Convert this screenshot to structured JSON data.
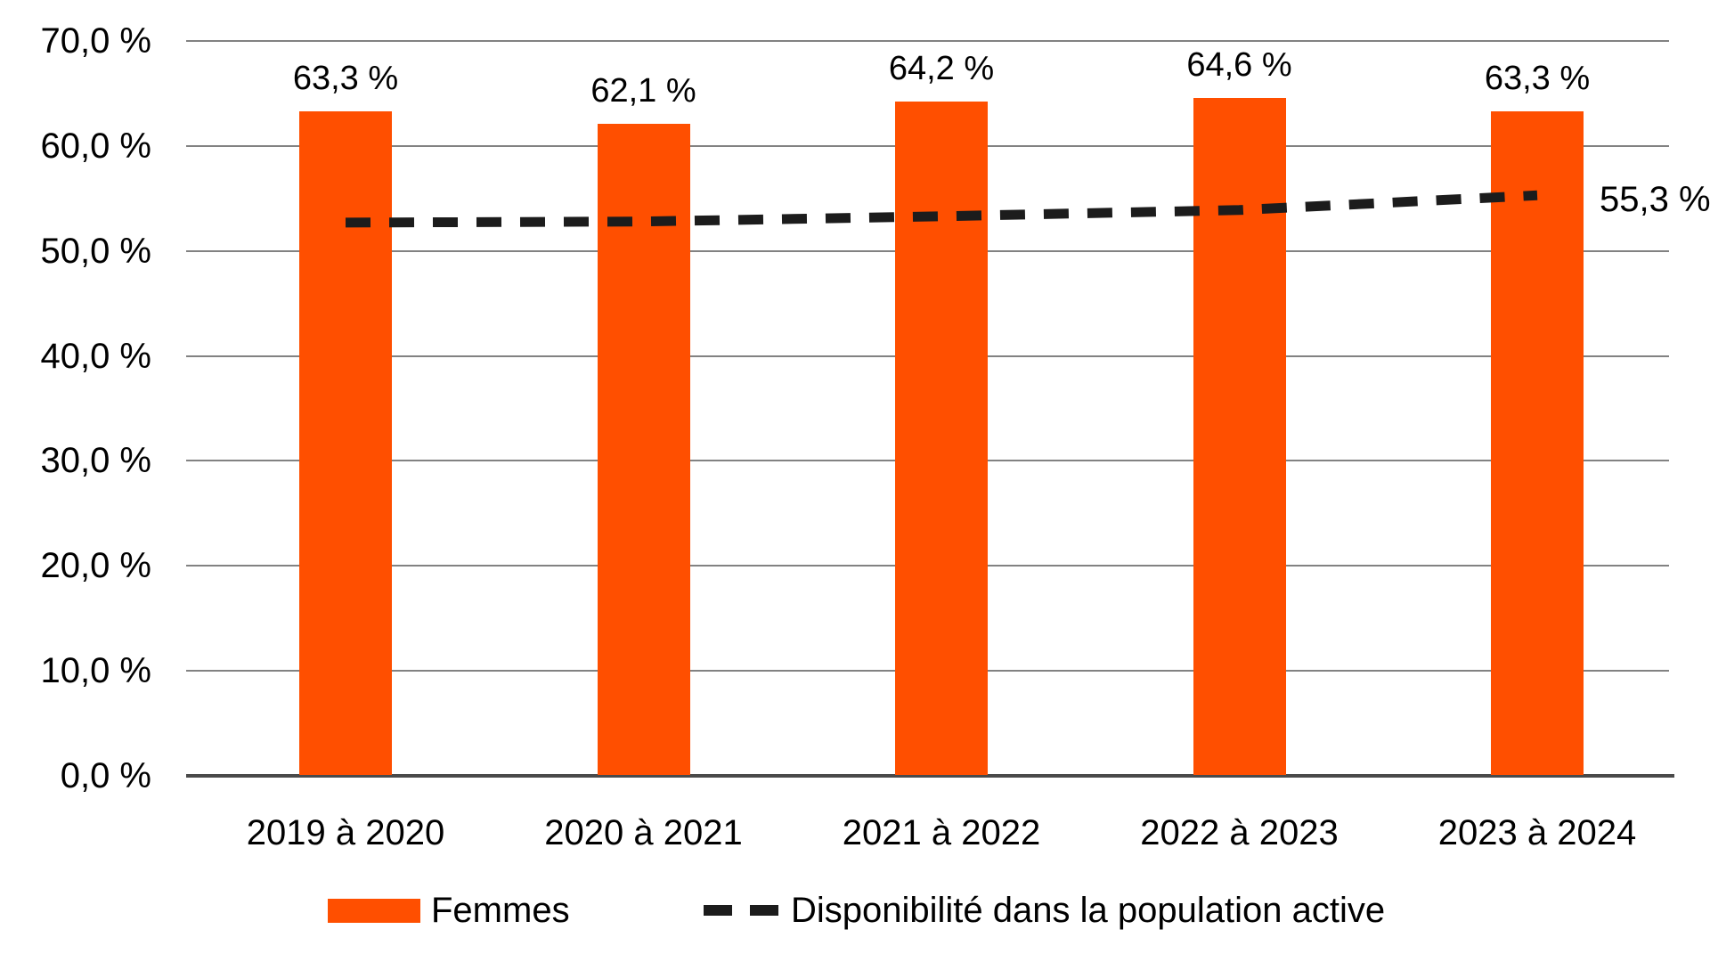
{
  "chart_data": {
    "type": "bar",
    "title": "",
    "categories": [
      "2019 à 2020",
      "2020 à 2021",
      "2021 à 2022",
      "2022 à 2023",
      "2023 à 2024"
    ],
    "series": [
      {
        "name": "Femmes",
        "type": "bar",
        "values": [
          63.3,
          62.1,
          64.2,
          64.6,
          63.3
        ],
        "data_labels": [
          "63,3 %",
          "62,1 %",
          "64,2 %",
          "64,6 %",
          "63,3 %"
        ],
        "color": "#FF4F00"
      },
      {
        "name": "Disponibilité dans la population active",
        "type": "line",
        "style": "dashed",
        "values": [
          52.7,
          52.8,
          53.3,
          53.9,
          55.3
        ],
        "end_label": "55,3 %",
        "color": "#1C1C1C"
      }
    ],
    "ylim": [
      0,
      70
    ],
    "ytick_step": 10,
    "yticks": [
      {
        "value": 70,
        "label": "70,0 %"
      },
      {
        "value": 60,
        "label": "60,0 %"
      },
      {
        "value": 50,
        "label": "50,0 %"
      },
      {
        "value": 40,
        "label": "40,0 %"
      },
      {
        "value": 30,
        "label": "30,0 %"
      },
      {
        "value": 20,
        "label": "20,0 %"
      },
      {
        "value": 10,
        "label": "10,0 %"
      },
      {
        "value": 0,
        "label": "0,0 %"
      }
    ],
    "grid": true,
    "legend_position": "bottom"
  },
  "legend": {
    "femmes_label": "Femmes",
    "availability_label": "Disponibilité dans la population active"
  },
  "colors": {
    "bar": "#FF4F00",
    "line": "#1C1C1C",
    "gridline": "#828282",
    "axis": "#4A4A4A",
    "text": "#000000",
    "background": "#FFFFFF"
  }
}
